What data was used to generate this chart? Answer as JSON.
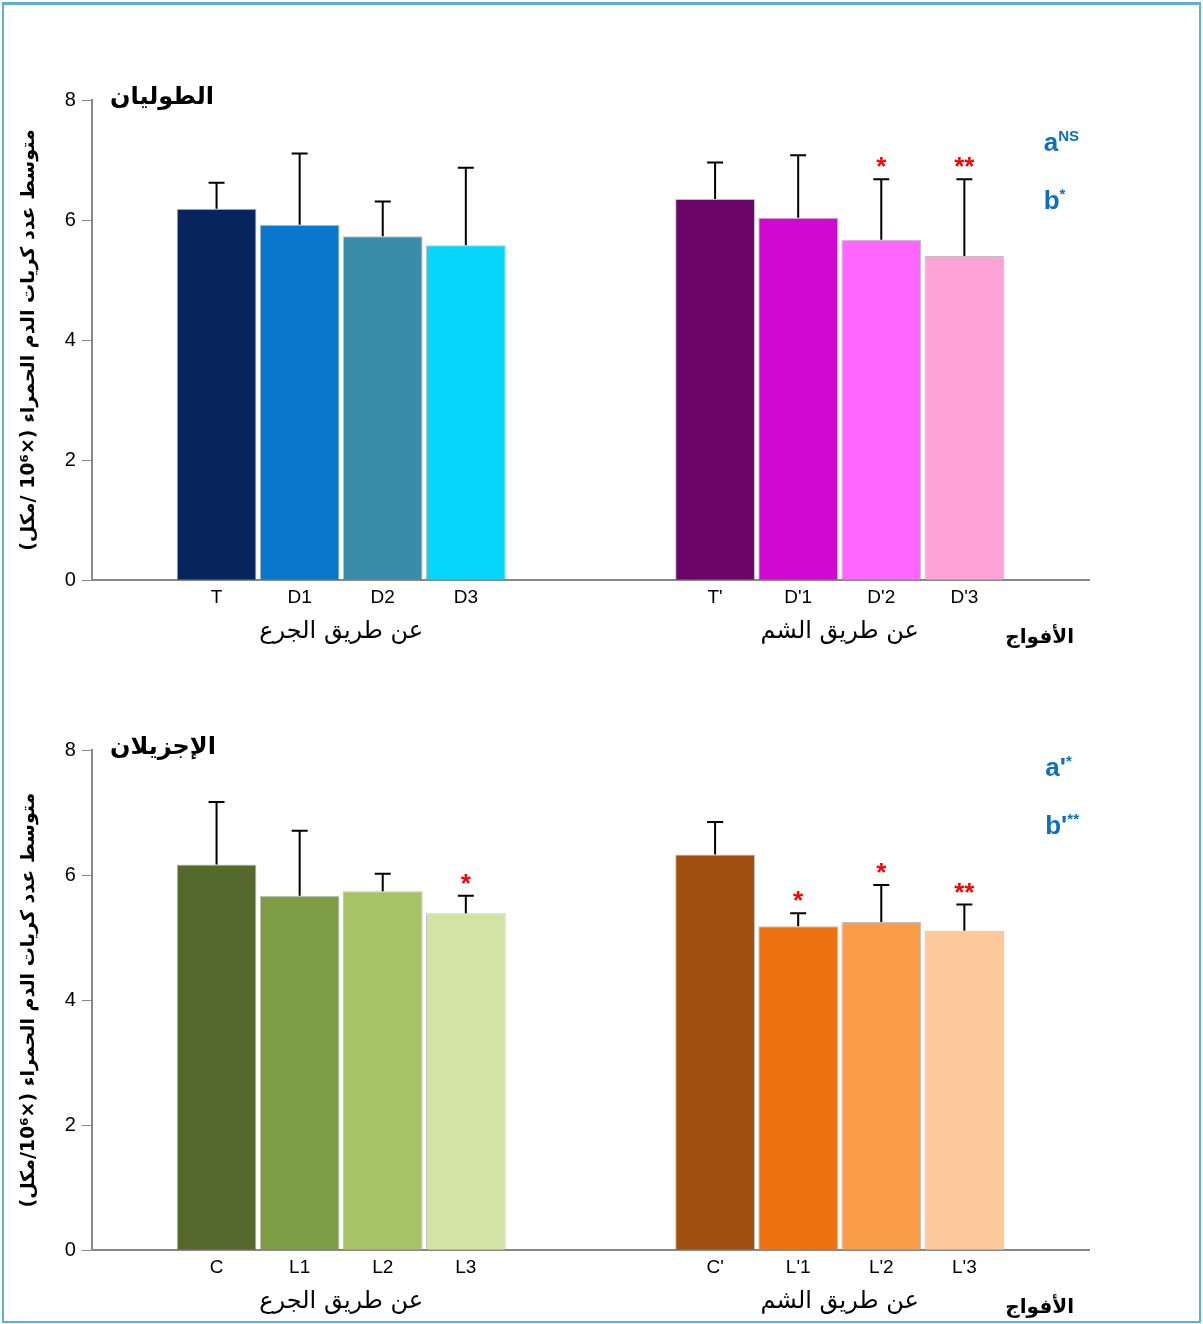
{
  "chart_data": [
    {
      "type": "bar",
      "title": "الطوليان",
      "ylabel": "متوسط عدد كريات الدم الحمراء (×10⁶ /مكل)",
      "xlabel": "الأفواج",
      "categories": [
        null,
        "T",
        "D1",
        "D2",
        "D3",
        null,
        null,
        "T'",
        "D'1",
        "D'2",
        "D'3",
        null
      ],
      "values": [
        null,
        6.19,
        5.92,
        5.73,
        5.58,
        null,
        null,
        6.35,
        6.04,
        5.67,
        5.4,
        null
      ],
      "colors": [
        null,
        "#06255f",
        "#0877cc",
        "#3a8ca8",
        "#05d4fb",
        null,
        null,
        "#6a0466",
        "#d008d0",
        "#ff66ff",
        "#ffa3d6",
        null
      ],
      "errors": [
        null,
        [
          6.19,
          6.62
        ],
        [
          5.92,
          7.11
        ],
        [
          5.73,
          6.31
        ],
        [
          5.58,
          6.87
        ],
        null,
        null,
        [
          6.35,
          6.96
        ],
        [
          6.04,
          7.08
        ],
        [
          5.67,
          6.68
        ],
        [
          5.4,
          6.68
        ],
        null
      ],
      "ylim": [
        0,
        8
      ],
      "yticks": [
        0,
        2,
        4,
        6,
        8
      ],
      "grid": false,
      "annotations": [
        "عن طريق الجرع",
        "عن طريق الشم",
        "a$^{NS}$",
        "b$^{*}$",
        {
          "text": "*",
          "x": "D'2",
          "y": 6.68
        },
        {
          "text": "**",
          "x": "D'3",
          "y": 6.68
        }
      ]
    },
    {
      "type": "bar",
      "title": "الإجزيلان",
      "ylabel": "متوسط عدد كريات الدم الحمراء (×10⁶/مكل)",
      "xlabel": "الأفواج",
      "categories": [
        null,
        "C",
        "L1",
        "L2",
        "L3",
        null,
        null,
        "C'",
        "L'1",
        "L'2",
        "L'3",
        null
      ],
      "values": [
        null,
        6.17,
        5.67,
        5.74,
        5.39,
        null,
        null,
        6.33,
        5.18,
        5.25,
        5.11,
        null
      ],
      "colors": [
        null,
        "#56692c",
        "#7e9c44",
        "#a6c466",
        "#d2e3a6",
        null,
        null,
        "#a04f0e",
        "#ee7310",
        "#fb9c4a",
        "#fdc99a",
        null
      ],
      "errors": [
        null,
        [
          6.17,
          7.17
        ],
        [
          5.67,
          6.71
        ],
        [
          5.74,
          6.02
        ],
        [
          5.39,
          5.67
        ],
        null,
        null,
        [
          6.33,
          6.85
        ],
        [
          5.18,
          5.39
        ],
        [
          5.25,
          5.84
        ],
        [
          5.11,
          5.53
        ],
        null
      ],
      "ylim": [
        0,
        8
      ],
      "yticks": [
        0,
        2,
        4,
        6,
        8
      ],
      "grid": false,
      "annotations": [
        "عن طريق الجرع",
        "عن طريق الشم",
        "a'$^{*}$",
        "b'$^{**}$",
        {
          "text": "*",
          "x": "L3",
          "y": 5.67
        },
        {
          "text": "*",
          "x": "L'1",
          "y": 5.39
        },
        {
          "text": "*",
          "x": "L'2",
          "y": 5.84
        },
        {
          "text": "**",
          "x": "L'3",
          "y": 5.53
        }
      ]
    }
  ]
}
